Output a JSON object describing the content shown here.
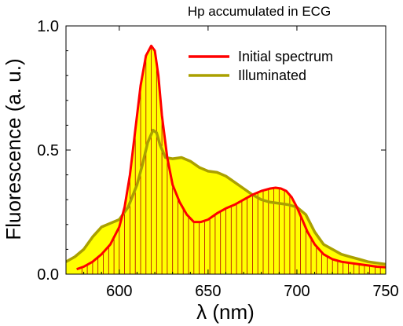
{
  "chart_data": {
    "type": "line",
    "title": "Hp accumulated in ECG",
    "xlabel": "λ (nm)",
    "ylabel": "Fluorescence (a. u.)",
    "xlim": [
      570,
      750
    ],
    "ylim": [
      0,
      1.0
    ],
    "x_ticks": [
      {
        "value": 600,
        "label": "600"
      },
      {
        "value": 650,
        "label": "650"
      },
      {
        "value": 700,
        "label": "700"
      },
      {
        "value": 750,
        "label": "750"
      }
    ],
    "y_ticks": [
      {
        "value": 0.0,
        "label": "0.0"
      },
      {
        "value": 0.5,
        "label": "0.5"
      },
      {
        "value": 1.0,
        "label": "1.0"
      }
    ],
    "grid": false,
    "legend_position": "top-right",
    "series": [
      {
        "name": "Initial spectrum",
        "color": "#ff0000",
        "fill": "#ffff00",
        "fill_hatch": "#b00000",
        "x": [
          576,
          580,
          585,
          590,
          595,
          600,
          603,
          606,
          609,
          612,
          615,
          618,
          620,
          622,
          624,
          627,
          630,
          634,
          638,
          642,
          646,
          650,
          655,
          660,
          665,
          670,
          675,
          680,
          685,
          688,
          691,
          694,
          697,
          700,
          703,
          706,
          710,
          715,
          720,
          725,
          730,
          735,
          740,
          745,
          750
        ],
        "y": [
          0.02,
          0.03,
          0.05,
          0.08,
          0.12,
          0.19,
          0.27,
          0.4,
          0.58,
          0.76,
          0.88,
          0.92,
          0.9,
          0.8,
          0.64,
          0.47,
          0.36,
          0.29,
          0.24,
          0.21,
          0.21,
          0.22,
          0.245,
          0.265,
          0.28,
          0.3,
          0.32,
          0.335,
          0.345,
          0.348,
          0.345,
          0.335,
          0.31,
          0.27,
          0.22,
          0.17,
          0.12,
          0.08,
          0.06,
          0.05,
          0.045,
          0.04,
          0.035,
          0.03,
          0.028
        ]
      },
      {
        "name": "Illuminated",
        "color": "#aaa000",
        "fill": "#ffff00",
        "x": [
          570,
          575,
          580,
          585,
          590,
          595,
          600,
          605,
          610,
          613,
          616,
          619,
          621,
          623,
          626,
          630,
          635,
          640,
          645,
          650,
          655,
          660,
          665,
          670,
          675,
          680,
          685,
          690,
          695,
          700,
          705,
          710,
          715,
          720,
          725,
          730,
          735,
          740,
          745,
          750
        ],
        "y": [
          0.05,
          0.07,
          0.1,
          0.15,
          0.19,
          0.205,
          0.22,
          0.27,
          0.36,
          0.44,
          0.53,
          0.58,
          0.57,
          0.52,
          0.47,
          0.465,
          0.47,
          0.455,
          0.43,
          0.415,
          0.41,
          0.395,
          0.37,
          0.345,
          0.32,
          0.3,
          0.29,
          0.285,
          0.28,
          0.27,
          0.24,
          0.17,
          0.12,
          0.1,
          0.08,
          0.07,
          0.06,
          0.05,
          0.045,
          0.04
        ]
      }
    ]
  }
}
